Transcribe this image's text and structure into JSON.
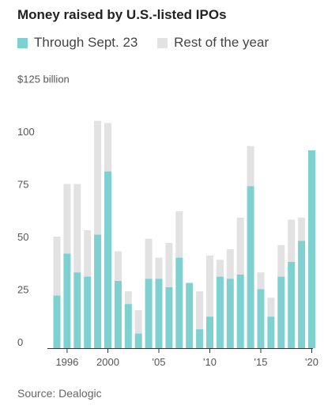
{
  "chart_data": {
    "type": "bar",
    "title": "Money raised by U.S.-listed IPOs",
    "source": "Source: Dealogic",
    "legend_position": "top-left",
    "stacked": true,
    "grid": false,
    "categories": [
      1995,
      1996,
      1997,
      1998,
      1999,
      2000,
      2001,
      2002,
      2003,
      2004,
      2005,
      2006,
      2007,
      2008,
      2009,
      2010,
      2011,
      2012,
      2013,
      2014,
      2015,
      2016,
      2017,
      2018,
      2019,
      2020
    ],
    "series": [
      {
        "name": "Through Sept. 23",
        "color": "#7fd0d0",
        "values": [
          25,
          45,
          36,
          34,
          54,
          84,
          32,
          21,
          7,
          33,
          33,
          29,
          43,
          31,
          9,
          15,
          34,
          33,
          35,
          77,
          28,
          15,
          34,
          41,
          51,
          94
        ]
      },
      {
        "name": "Rest of the year",
        "color": "#e2e2e2",
        "values": [
          28,
          33,
          42,
          22,
          54,
          23,
          14,
          6,
          11,
          19,
          10,
          21,
          22,
          0,
          18,
          29,
          8,
          14,
          27,
          19,
          8,
          9,
          15,
          20,
          11,
          0
        ]
      }
    ],
    "ylim": [
      0,
      125
    ],
    "ytick_labels": [
      {
        "value": 0,
        "label": "0"
      },
      {
        "value": 25,
        "label": "25"
      },
      {
        "value": 50,
        "label": "50"
      },
      {
        "value": 75,
        "label": "75"
      },
      {
        "value": 100,
        "label": "100"
      },
      {
        "value": 125,
        "label": "$125 billion"
      }
    ],
    "xtick_labels": [
      {
        "value": 1996,
        "label": "1996"
      },
      {
        "value": 2000,
        "label": "2000"
      },
      {
        "value": 2005,
        "label": "'05"
      },
      {
        "value": 2010,
        "label": "'10"
      },
      {
        "value": 2015,
        "label": "'15"
      },
      {
        "value": 2020,
        "label": "'20"
      }
    ]
  }
}
